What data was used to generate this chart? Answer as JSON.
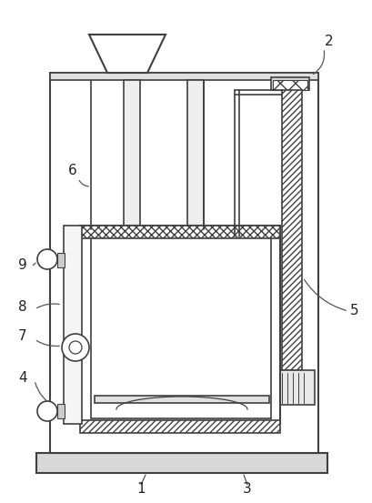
{
  "bg_color": "#ffffff",
  "line_color": "#404040",
  "figsize": [
    4.1,
    5.53
  ],
  "dpi": 100
}
